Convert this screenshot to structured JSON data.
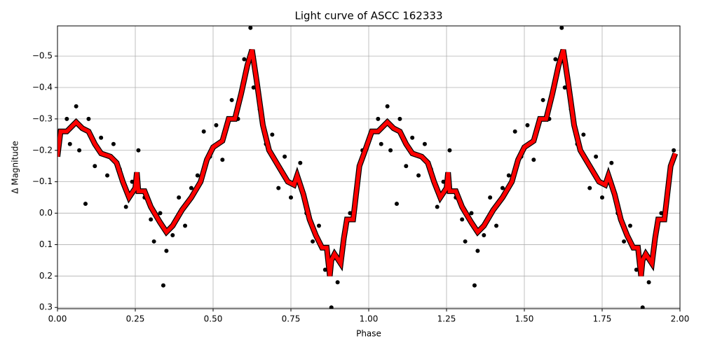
{
  "chart_data": {
    "type": "scatter",
    "title": "Light curve of ASCC 162333",
    "xlabel": "Phase",
    "ylabel": "Δ Magnitude",
    "xlim": [
      0,
      2
    ],
    "ylim": [
      0.304,
      -0.596
    ],
    "xticks": [
      {
        "value": 0,
        "label": "0.00"
      },
      0.25,
      {
        "value": 0.5,
        "label": "0.50"
      },
      0.75,
      {
        "value": 1,
        "label": "1.00"
      },
      1.25,
      {
        "value": 1.5,
        "label": "1.50"
      },
      1.75,
      {
        "value": 2,
        "label": "2.00"
      }
    ],
    "yticks": [
      {
        "value": -0.5,
        "label": "−0.5"
      },
      {
        "value": -0.4,
        "label": "−0.4"
      },
      {
        "value": -0.3,
        "label": "−0.3"
      },
      {
        "value": -0.2,
        "label": "−0.2"
      },
      {
        "value": -0.1,
        "label": "−0.1"
      },
      {
        "value": 0,
        "label": "0.0"
      },
      0.1,
      0.2,
      0.3
    ],
    "grid": true,
    "series": [
      {
        "type": "scatter",
        "color": "#000000",
        "x": [
          0.03,
          0.04,
          0.06,
          0.07,
          0.09,
          0.1,
          0.12,
          0.14,
          0.16,
          0.18,
          0.2,
          0.22,
          0.24,
          0.26,
          0.28,
          0.3,
          0.31,
          0.33,
          0.34,
          0.35,
          0.37,
          0.39,
          0.41,
          0.43,
          0.45,
          0.47,
          0.49,
          0.51,
          0.53,
          0.56,
          0.58,
          0.6,
          0.62,
          0.63,
          0.65,
          0.67,
          0.69,
          0.71,
          0.73,
          0.75,
          0.78,
          0.8,
          0.82,
          0.84,
          0.86,
          0.88,
          0.9,
          0.92,
          0.94,
          0.96,
          0.98,
          1.03,
          1.04,
          1.06,
          1.07,
          1.09,
          1.1,
          1.12,
          1.14,
          1.16,
          1.18,
          1.2,
          1.22,
          1.24,
          1.26,
          1.28,
          1.3,
          1.31,
          1.33,
          1.34,
          1.35,
          1.37,
          1.39,
          1.41,
          1.43,
          1.45,
          1.47,
          1.49,
          1.51,
          1.53,
          1.56,
          1.58,
          1.6,
          1.62,
          1.63,
          1.65,
          1.67,
          1.69,
          1.71,
          1.73,
          1.75,
          1.78,
          1.8,
          1.82,
          1.84,
          1.86,
          1.88,
          1.9,
          1.92,
          1.94,
          1.96,
          1.98
        ],
        "values": [
          -0.3,
          -0.22,
          -0.34,
          -0.2,
          -0.03,
          -0.3,
          -0.15,
          -0.24,
          -0.12,
          -0.22,
          -0.14,
          -0.02,
          -0.1,
          -0.2,
          -0.05,
          0.02,
          0.09,
          0,
          0.23,
          0.12,
          0.07,
          -0.05,
          0.04,
          -0.08,
          -0.12,
          -0.26,
          -0.18,
          -0.28,
          -0.17,
          -0.36,
          -0.3,
          -0.49,
          -0.59,
          -0.4,
          -0.33,
          -0.22,
          -0.25,
          -0.08,
          -0.18,
          -0.05,
          -0.16,
          0,
          0.09,
          0.04,
          0.18,
          0.3,
          0.22,
          0.1,
          0,
          -0.08,
          -0.2,
          -0.3,
          -0.22,
          -0.34,
          -0.2,
          -0.03,
          -0.3,
          -0.15,
          -0.24,
          -0.12,
          -0.22,
          -0.14,
          -0.02,
          -0.1,
          -0.2,
          -0.05,
          0.02,
          0.09,
          0,
          0.23,
          0.12,
          0.07,
          -0.05,
          0.04,
          -0.08,
          -0.12,
          -0.26,
          -0.18,
          -0.28,
          -0.17,
          -0.36,
          -0.3,
          -0.49,
          -0.59,
          -0.4,
          -0.33,
          -0.22,
          -0.25,
          -0.08,
          -0.18,
          -0.05,
          -0.16,
          0,
          0.09,
          0.04,
          0.18,
          0.3,
          0.22,
          0.1,
          0,
          -0.08,
          -0.2
        ]
      },
      {
        "type": "line",
        "color": "#ff0000",
        "x": [
          0,
          0.005,
          0.01,
          0.03,
          0.05,
          0.06,
          0.08,
          0.1,
          0.12,
          0.14,
          0.17,
          0.19,
          0.21,
          0.23,
          0.25,
          0.255,
          0.26,
          0.28,
          0.3,
          0.33,
          0.35,
          0.37,
          0.4,
          0.43,
          0.46,
          0.48,
          0.5,
          0.53,
          0.55,
          0.57,
          0.59,
          0.61,
          0.625,
          0.64,
          0.66,
          0.68,
          0.71,
          0.74,
          0.76,
          0.77,
          0.79,
          0.81,
          0.83,
          0.85,
          0.865,
          0.875,
          0.88,
          0.89,
          0.91,
          0.92,
          0.93,
          0.95,
          0.97,
          0.985,
          1.01,
          1.03,
          1.05,
          1.06,
          1.08,
          1.1,
          1.12,
          1.14,
          1.17,
          1.19,
          1.21,
          1.23,
          1.25,
          1.255,
          1.26,
          1.28,
          1.3,
          1.33,
          1.35,
          1.37,
          1.4,
          1.43,
          1.46,
          1.48,
          1.5,
          1.53,
          1.55,
          1.57,
          1.59,
          1.61,
          1.625,
          1.64,
          1.66,
          1.68,
          1.71,
          1.74,
          1.76,
          1.77,
          1.79,
          1.81,
          1.83,
          1.85,
          1.865,
          1.875,
          1.88,
          1.89,
          1.91,
          1.92,
          1.93,
          1.95,
          1.97,
          1.985
        ],
        "values": [
          -0.18,
          -0.22,
          -0.26,
          -0.26,
          -0.28,
          -0.29,
          -0.27,
          -0.26,
          -0.22,
          -0.19,
          -0.18,
          -0.16,
          -0.1,
          -0.05,
          -0.08,
          -0.13,
          -0.07,
          -0.07,
          -0.02,
          0.03,
          0.06,
          0.04,
          -0.01,
          -0.05,
          -0.1,
          -0.17,
          -0.21,
          -0.23,
          -0.3,
          -0.3,
          -0.38,
          -0.47,
          -0.52,
          -0.42,
          -0.28,
          -0.2,
          -0.15,
          -0.1,
          -0.09,
          -0.12,
          -0.06,
          0.02,
          0.07,
          0.11,
          0.11,
          0.2,
          0.15,
          0.13,
          0.16,
          0.08,
          0.02,
          0.02,
          -0.15,
          -0.19,
          -0.26,
          -0.26,
          -0.28,
          -0.29,
          -0.27,
          -0.26,
          -0.22,
          -0.19,
          -0.18,
          -0.16,
          -0.1,
          -0.05,
          -0.08,
          -0.13,
          -0.07,
          -0.07,
          -0.02,
          0.03,
          0.06,
          0.04,
          -0.01,
          -0.05,
          -0.1,
          -0.17,
          -0.21,
          -0.23,
          -0.3,
          -0.3,
          -0.38,
          -0.47,
          -0.52,
          -0.42,
          -0.28,
          -0.2,
          -0.15,
          -0.1,
          -0.09,
          -0.12,
          -0.06,
          0.02,
          0.07,
          0.11,
          0.11,
          0.2,
          0.15,
          0.13,
          0.16,
          0.08,
          0.02,
          0.02,
          -0.15,
          -0.19
        ]
      }
    ]
  }
}
